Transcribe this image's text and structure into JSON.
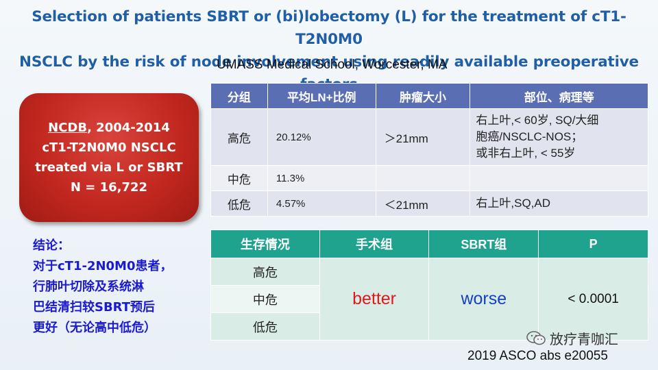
{
  "title_line1": "Selection of patients SBRT or (bi)lobectomy (L) for the treatment of cT1-T2N0M0",
  "title_line2": "NSCLC by the risk of node involvement using readily available preoperative factors",
  "subtitle": "UMASS Medical School, Worcester, MA",
  "cohort_box": {
    "line1": "NCDB",
    "line1_suffix": ", 2004-2014",
    "line2": "cT1-T2N0M0 NSCLC",
    "line3": "treated via L or SBRT",
    "line4": "N = 16,722"
  },
  "conclusion": {
    "line1": "结论：",
    "line2": "对于cT1-2N0M0患者，",
    "line3": "行肺叶切除及系统淋",
    "line4": "巴结清扫较SBRT预后",
    "line5": "更好（无论高中低危）"
  },
  "risk_table": {
    "headers": [
      "分组",
      "平均LN+比例",
      "肿瘤大小",
      "部位、病理等"
    ],
    "rows": [
      {
        "group": "高危",
        "ln_rate": "20.12%",
        "size": "＞21mm",
        "detail_l1": "右上叶,< 60岁, SQ/大细",
        "detail_l2": "胞癌/NSCLC-NOS；",
        "detail_l3": "或非右上叶, < 55岁"
      },
      {
        "group": "中危",
        "ln_rate": "11.3%",
        "size": "",
        "detail_l1": ""
      },
      {
        "group": "低危",
        "ln_rate": "4.57%",
        "size": "＜21mm",
        "detail_l1": "右上叶,SQ,AD"
      }
    ]
  },
  "survival_table": {
    "headers": [
      "生存情况",
      "手术组",
      "SBRT组",
      "P"
    ],
    "risk_rows": [
      "高危",
      "中危",
      "低危"
    ],
    "surgery_result": "better",
    "sbrt_result": "worse",
    "p_value": "< 0.0001"
  },
  "watermark": "放疗青咖汇",
  "citation": "2019 ASCO abs e20055",
  "colors": {
    "title": "#1f5fa8",
    "risk_header": "#5a6fb3",
    "survival_header": "#1fa38e",
    "cohort_box": "#c2281f",
    "conclusion": "#1a1ad0",
    "better": "#e01a1a",
    "worse": "#1540c0"
  }
}
